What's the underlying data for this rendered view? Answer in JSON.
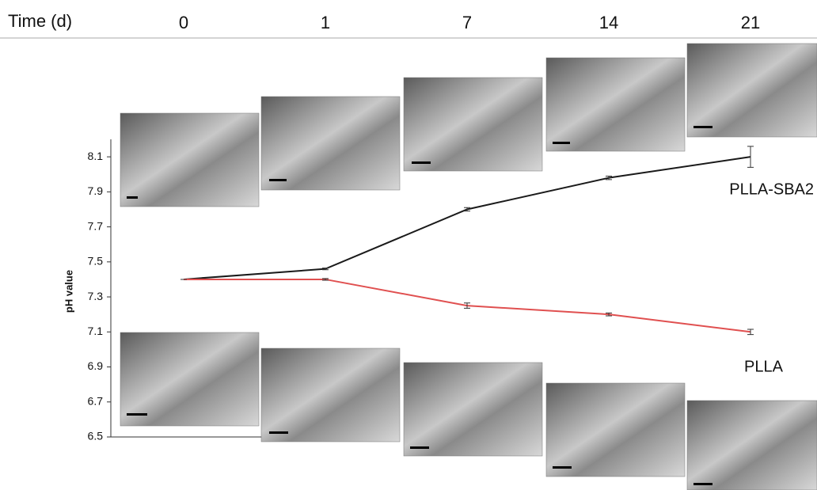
{
  "chart_data": {
    "type": "line",
    "x_label": "Time (d)",
    "y_label": "pH value",
    "categories": [
      "0",
      "1",
      "7",
      "14",
      "21"
    ],
    "series": [
      {
        "name": "PLLA-SBA2",
        "color": "#1a1a1a",
        "values": [
          7.4,
          7.46,
          7.8,
          7.98,
          8.1
        ],
        "errors": [
          0,
          0.005,
          0.01,
          0.01,
          0.06
        ]
      },
      {
        "name": "PLLA",
        "color": "#e05050",
        "values": [
          7.4,
          7.4,
          7.25,
          7.2,
          7.1
        ],
        "errors": [
          0,
          0.005,
          0.015,
          0.008,
          0.015
        ]
      }
    ],
    "ylim": [
      6.5,
      8.2
    ],
    "yticks": [
      6.5,
      6.7,
      6.9,
      7.1,
      7.3,
      7.5,
      7.7,
      7.9,
      8.1
    ]
  }
}
